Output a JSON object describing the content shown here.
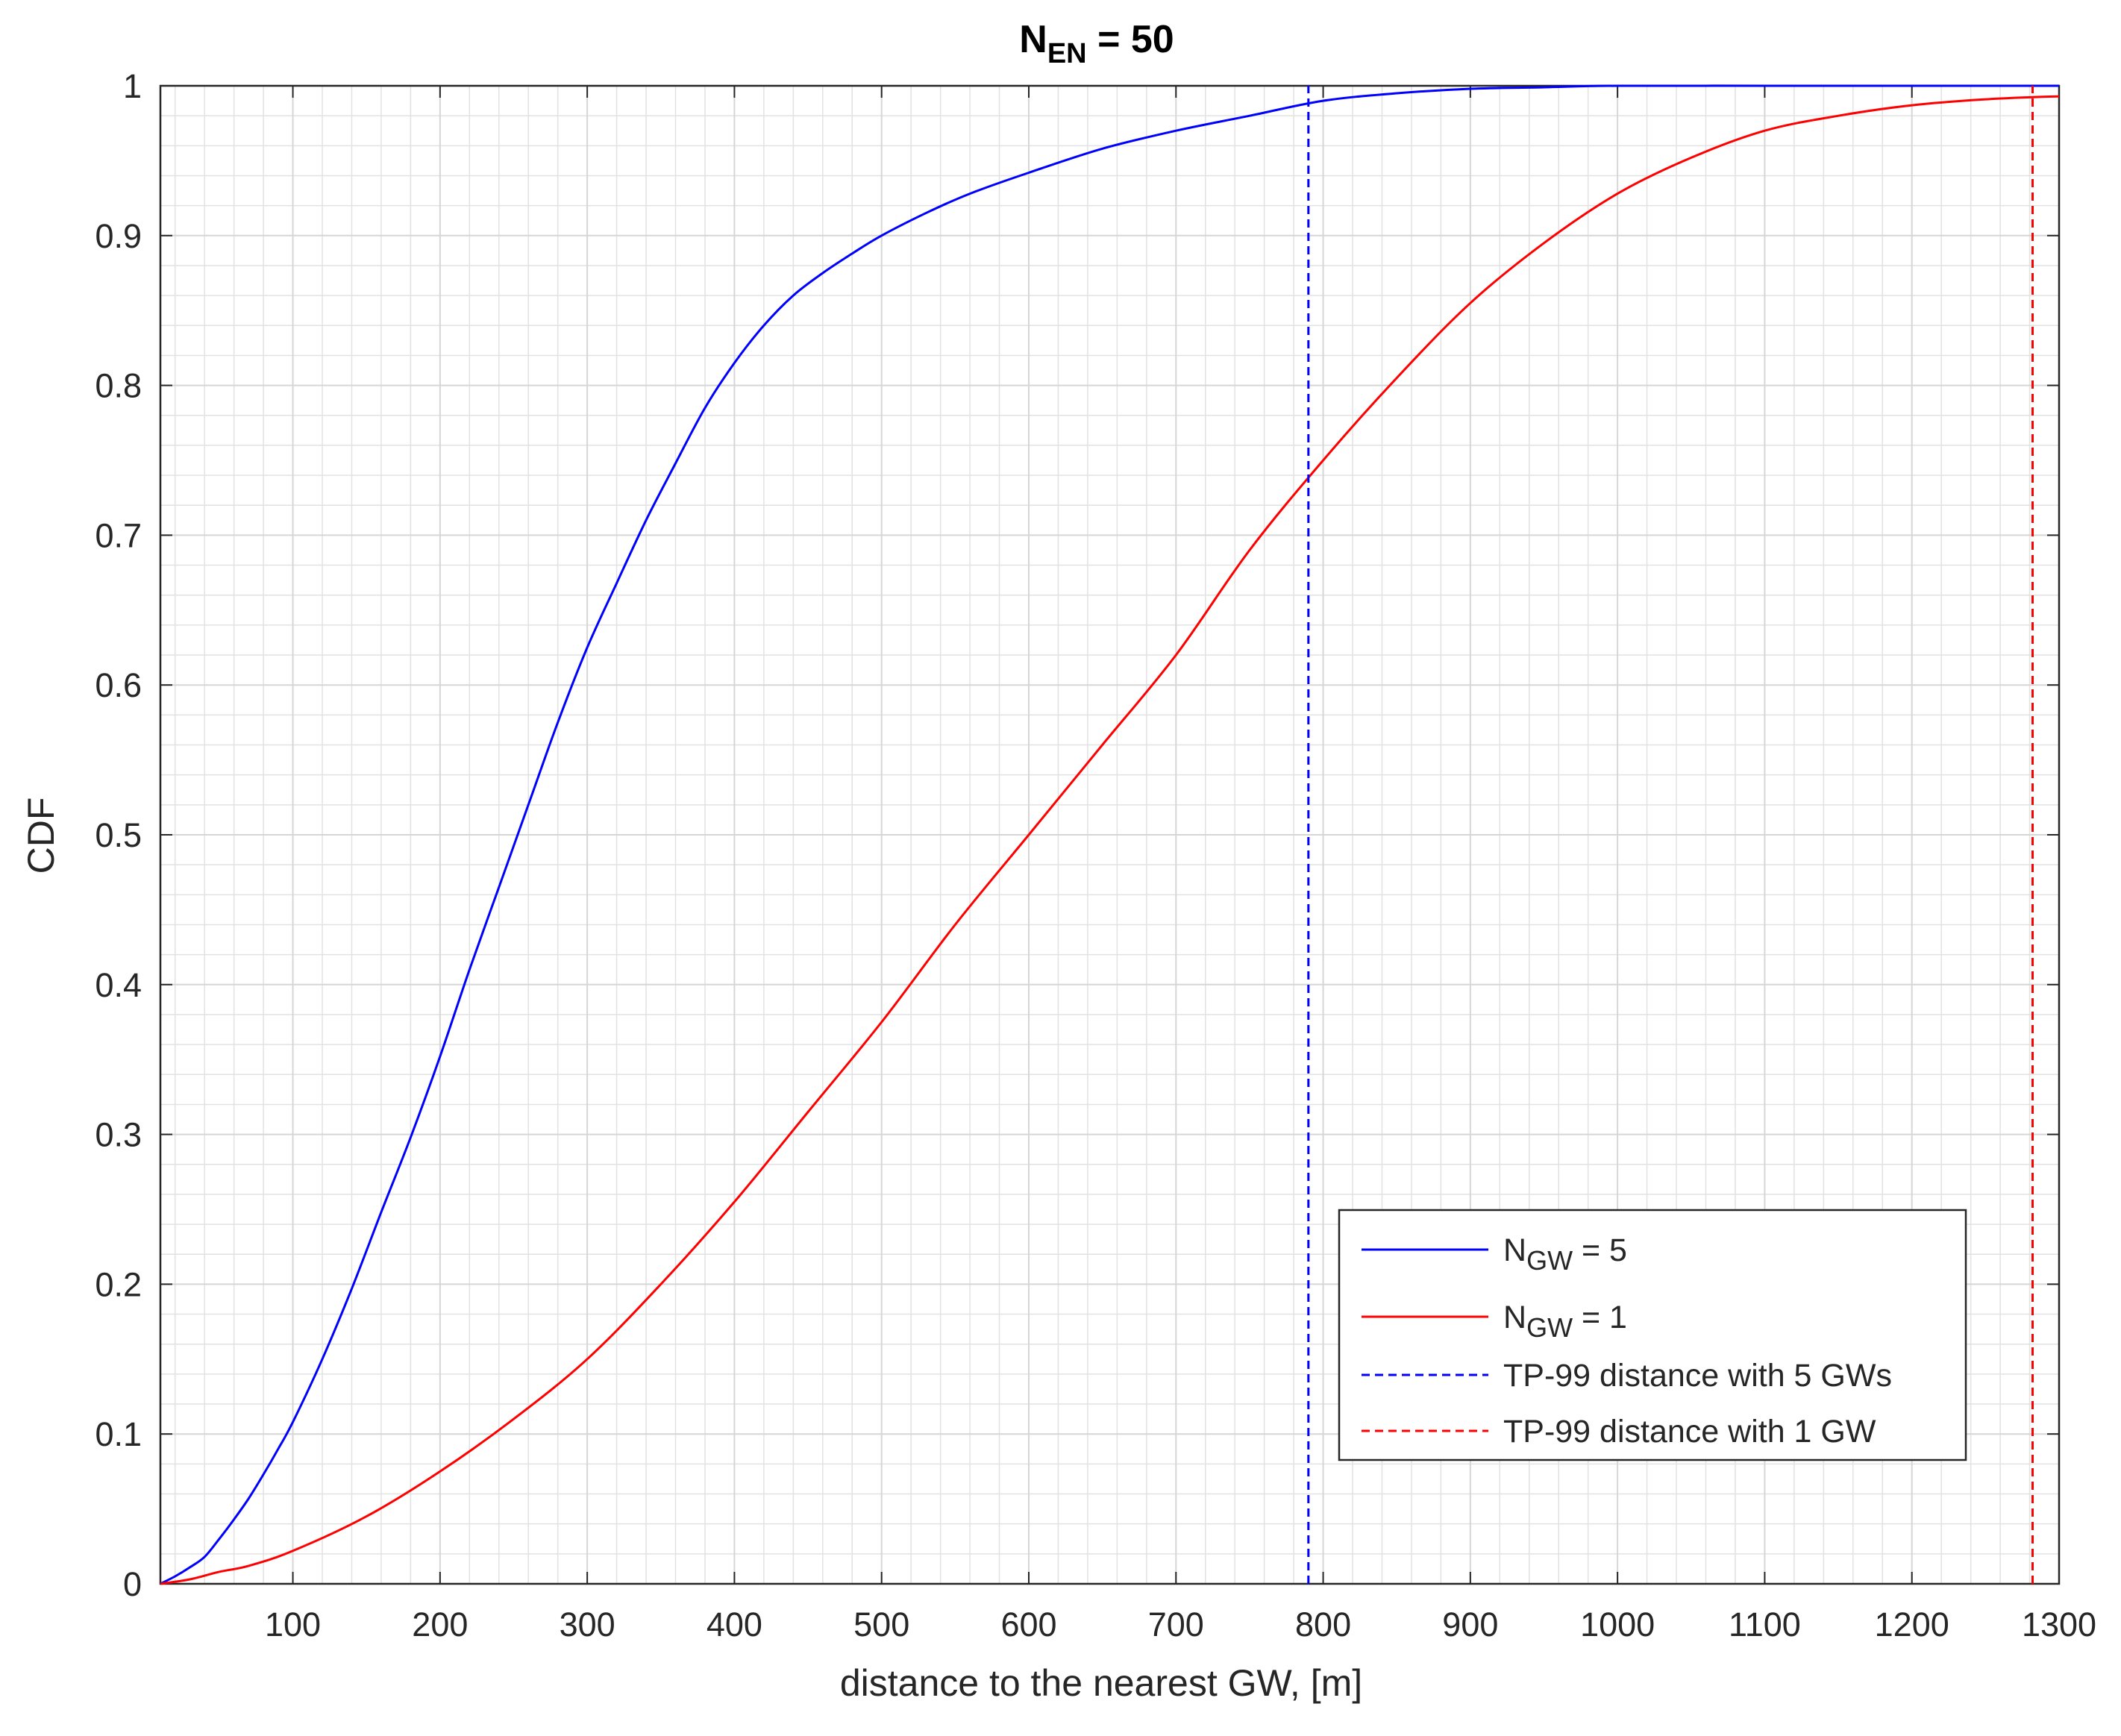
{
  "chart_data": {
    "type": "line",
    "title": {
      "main": "N",
      "sub": "EN",
      "rest": " = 50"
    },
    "xlabel": "distance to the nearest GW, [m]",
    "ylabel": "CDF",
    "xlim": [
      10,
      1300
    ],
    "ylim": [
      0,
      1
    ],
    "x_ticks": [
      100,
      200,
      300,
      400,
      500,
      600,
      700,
      800,
      900,
      1000,
      1100,
      1200,
      1300
    ],
    "x_tick_labels": [
      "100",
      "200",
      "300",
      "400",
      "500",
      "600",
      "700",
      "800",
      "900",
      "1000",
      "1100",
      "1200",
      "1300"
    ],
    "y_ticks": [
      0,
      0.1,
      0.2,
      0.3,
      0.4,
      0.5,
      0.6,
      0.7,
      0.8,
      0.9,
      1
    ],
    "y_tick_labels": [
      "0",
      "0.1",
      "0.2",
      "0.3",
      "0.4",
      "0.5",
      "0.6",
      "0.7",
      "0.8",
      "0.9",
      "1"
    ],
    "grid": "major and minor",
    "legend_location": "lower right",
    "series": [
      {
        "name": "N_GW = 5",
        "legend": {
          "main": "N",
          "sub": "GW",
          "rest": " = 5"
        },
        "color": "#0000ff",
        "style": "solid",
        "x": [
          10,
          20,
          30,
          40,
          50,
          60,
          70,
          80,
          90,
          100,
          120,
          140,
          160,
          180,
          200,
          220,
          240,
          260,
          280,
          300,
          320,
          340,
          360,
          380,
          400,
          420,
          440,
          460,
          480,
          500,
          530,
          560,
          600,
          650,
          700,
          750,
          800,
          850,
          900,
          950,
          1000,
          1100,
          1200,
          1300
        ],
        "y": [
          0,
          0.005,
          0.011,
          0.018,
          0.03,
          0.043,
          0.057,
          0.073,
          0.09,
          0.108,
          0.15,
          0.197,
          0.248,
          0.298,
          0.352,
          0.41,
          0.465,
          0.52,
          0.575,
          0.625,
          0.668,
          0.71,
          0.748,
          0.785,
          0.815,
          0.84,
          0.86,
          0.875,
          0.888,
          0.9,
          0.915,
          0.928,
          0.942,
          0.958,
          0.97,
          0.98,
          0.99,
          0.995,
          0.998,
          0.999,
          1,
          1,
          1,
          1
        ]
      },
      {
        "name": "N_GW = 1",
        "legend": {
          "main": "N",
          "sub": "GW",
          "rest": " = 1"
        },
        "color": "#ff0000",
        "style": "solid",
        "x": [
          10,
          30,
          50,
          70,
          100,
          150,
          200,
          250,
          300,
          350,
          400,
          450,
          500,
          550,
          600,
          650,
          700,
          750,
          800,
          850,
          900,
          950,
          1000,
          1050,
          1100,
          1150,
          1200,
          1250,
          1300
        ],
        "y": [
          0,
          0.003,
          0.008,
          0.012,
          0.022,
          0.045,
          0.075,
          0.11,
          0.15,
          0.2,
          0.255,
          0.315,
          0.375,
          0.44,
          0.5,
          0.56,
          0.62,
          0.69,
          0.75,
          0.805,
          0.855,
          0.895,
          0.928,
          0.952,
          0.97,
          0.98,
          0.987,
          0.991,
          0.993
        ]
      },
      {
        "name": "TP-99 distance with 5 GWs",
        "color": "#0000ff",
        "style": "dashed",
        "x": [
          790,
          790
        ],
        "y": [
          0,
          1
        ]
      },
      {
        "name": "TP-99 distance with 1 GW",
        "color": "#ff0000",
        "style": "dashed",
        "x": [
          1282,
          1282
        ],
        "y": [
          0,
          1
        ]
      }
    ]
  }
}
